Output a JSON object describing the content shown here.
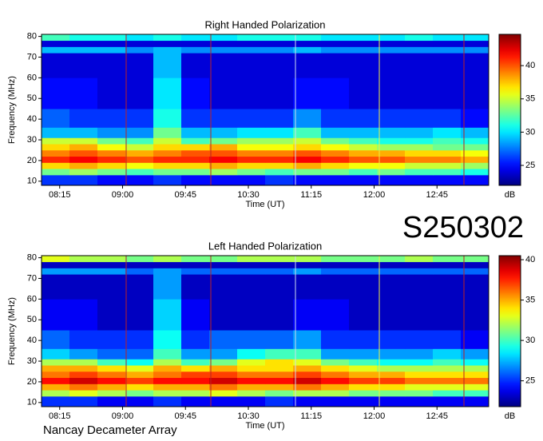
{
  "label": "S250302",
  "footer": "Nancay Decameter Array",
  "chart_data": [
    {
      "type": "heatmap",
      "title": "Right Handed Polarization",
      "xlabel": "Time (UT)",
      "ylabel": "Frequency (MHz)",
      "colorbar_label": "dB",
      "colormap": "jet",
      "xlim": [
        482,
        802
      ],
      "ylim": [
        8,
        81
      ],
      "zlim": [
        22,
        44.7
      ],
      "xticks": [
        {
          "value": 495,
          "label": "08:15"
        },
        {
          "value": 540,
          "label": "09:00"
        },
        {
          "value": 585,
          "label": "09:45"
        },
        {
          "value": 630,
          "label": "10:30"
        },
        {
          "value": 675,
          "label": "11:15"
        },
        {
          "value": 720,
          "label": "12:00"
        },
        {
          "value": 765,
          "label": "12:45"
        }
      ],
      "yticks": [
        10,
        20,
        30,
        40,
        50,
        60,
        70,
        80
      ],
      "zticks": [
        25,
        30,
        35,
        40
      ],
      "xbins": [
        482,
        502,
        522,
        542,
        562,
        582,
        602,
        622,
        642,
        662,
        682,
        702,
        722,
        742,
        762,
        782,
        802
      ],
      "ybins": [
        8,
        13,
        16,
        19,
        22,
        25,
        28,
        31,
        36,
        45,
        60,
        72,
        75,
        78,
        81
      ],
      "values": [
        [
          26,
          26,
          25,
          25,
          26,
          25,
          25,
          25,
          26,
          25,
          25,
          25,
          25,
          25,
          25,
          25
        ],
        [
          33,
          34,
          33,
          32,
          33,
          33,
          34,
          33,
          32,
          33,
          33,
          32,
          33,
          32,
          32,
          31
        ],
        [
          37,
          38,
          37,
          36,
          37,
          37,
          38,
          37,
          37,
          38,
          37,
          36,
          36,
          35,
          35,
          34
        ],
        [
          41,
          42,
          41,
          40,
          41,
          41,
          42,
          41,
          41,
          42,
          41,
          40,
          40,
          39,
          39,
          38
        ],
        [
          39,
          40,
          39,
          38,
          39,
          40,
          40,
          39,
          39,
          40,
          39,
          38,
          38,
          37,
          37,
          36
        ],
        [
          37,
          38,
          36,
          35,
          37,
          37,
          38,
          36,
          36,
          37,
          36,
          35,
          34,
          34,
          33,
          33
        ],
        [
          35,
          35,
          33,
          32,
          35,
          32,
          33,
          34,
          34,
          35,
          33,
          32,
          31,
          31,
          32,
          31
        ],
        [
          29,
          29,
          28,
          28,
          33,
          29,
          29,
          30,
          30,
          32,
          29,
          29,
          29,
          29,
          30,
          29
        ],
        [
          27,
          26,
          26,
          26,
          31,
          26,
          26,
          26,
          26,
          28,
          26,
          26,
          26,
          26,
          26,
          25
        ],
        [
          25,
          25,
          24,
          24,
          30,
          25,
          24,
          24,
          24,
          25,
          25,
          24,
          24,
          24,
          24,
          24
        ],
        [
          24,
          24,
          24,
          24,
          29,
          24,
          24,
          24,
          24,
          24,
          24,
          24,
          24,
          24,
          24,
          24
        ],
        [
          29,
          29,
          29,
          28,
          29,
          28,
          28,
          28,
          28,
          29,
          28,
          28,
          28,
          28,
          28,
          28
        ],
        [
          24,
          24,
          24,
          24,
          24,
          24,
          24,
          24,
          24,
          24,
          24,
          24,
          24,
          24,
          24,
          24
        ],
        [
          32,
          31,
          31,
          30,
          31,
          30,
          30,
          31,
          31,
          31,
          30,
          30,
          30,
          31,
          30,
          30
        ]
      ]
    },
    {
      "type": "heatmap",
      "title": "Left Handed Polarization",
      "xlabel": "Time (UT)",
      "ylabel": "Frequency (MHz)",
      "colorbar_label": "dB",
      "colormap": "jet",
      "xlim": [
        482,
        802
      ],
      "ylim": [
        8,
        81
      ],
      "zlim": [
        21.8,
        40.5
      ],
      "xticks": [
        {
          "value": 495,
          "label": "08:15"
        },
        {
          "value": 540,
          "label": "09:00"
        },
        {
          "value": 585,
          "label": "09:45"
        },
        {
          "value": 630,
          "label": "10:30"
        },
        {
          "value": 675,
          "label": "11:15"
        },
        {
          "value": 720,
          "label": "12:00"
        },
        {
          "value": 765,
          "label": "12:45"
        }
      ],
      "yticks": [
        10,
        20,
        30,
        40,
        50,
        60,
        70,
        80
      ],
      "zticks": [
        25,
        30,
        35,
        40
      ],
      "xbins": [
        482,
        502,
        522,
        542,
        562,
        582,
        602,
        622,
        642,
        662,
        682,
        702,
        722,
        742,
        762,
        782,
        802
      ],
      "ybins": [
        8,
        13,
        16,
        19,
        22,
        25,
        28,
        31,
        36,
        45,
        60,
        72,
        75,
        78,
        81
      ],
      "values": [
        [
          25,
          25,
          24,
          24,
          25,
          24,
          24,
          24,
          25,
          24,
          24,
          24,
          24,
          24,
          24,
          24
        ],
        [
          32,
          33,
          32,
          31,
          32,
          32,
          33,
          32,
          31,
          32,
          32,
          31,
          31,
          31,
          30,
          30
        ],
        [
          35,
          36,
          35,
          34,
          35,
          35,
          36,
          35,
          35,
          36,
          35,
          34,
          34,
          33,
          33,
          33
        ],
        [
          38,
          39,
          38,
          37,
          38,
          38,
          39,
          38,
          38,
          39,
          38,
          37,
          37,
          36,
          36,
          36
        ],
        [
          36,
          37,
          36,
          35,
          36,
          37,
          37,
          36,
          36,
          37,
          36,
          35,
          35,
          34,
          34,
          34
        ],
        [
          35,
          35,
          34,
          33,
          35,
          34,
          35,
          34,
          34,
          35,
          34,
          33,
          32,
          32,
          32,
          32
        ],
        [
          32,
          32,
          30,
          29,
          32,
          30,
          31,
          33,
          34,
          33,
          31,
          30,
          29,
          29,
          30,
          29
        ],
        [
          28,
          27,
          26,
          26,
          30,
          27,
          27,
          29,
          30,
          30,
          27,
          27,
          27,
          27,
          28,
          27
        ],
        [
          26,
          25,
          25,
          25,
          29,
          25,
          26,
          26,
          26,
          27,
          25,
          25,
          25,
          25,
          25,
          24
        ],
        [
          24,
          24,
          23,
          23,
          28,
          24,
          23,
          23,
          23,
          24,
          24,
          23,
          23,
          23,
          23,
          23
        ],
        [
          23,
          23,
          23,
          23,
          27,
          23,
          23,
          23,
          23,
          23,
          23,
          23,
          23,
          23,
          23,
          23
        ],
        [
          27,
          27,
          27,
          26,
          27,
          26,
          26,
          26,
          26,
          27,
          26,
          26,
          26,
          26,
          26,
          26
        ],
        [
          23,
          23,
          23,
          23,
          23,
          23,
          23,
          23,
          23,
          23,
          23,
          23,
          23,
          23,
          23,
          23
        ],
        [
          33,
          32,
          32,
          31,
          32,
          31,
          31,
          32,
          32,
          32,
          31,
          31,
          31,
          32,
          31,
          31
        ]
      ]
    }
  ]
}
